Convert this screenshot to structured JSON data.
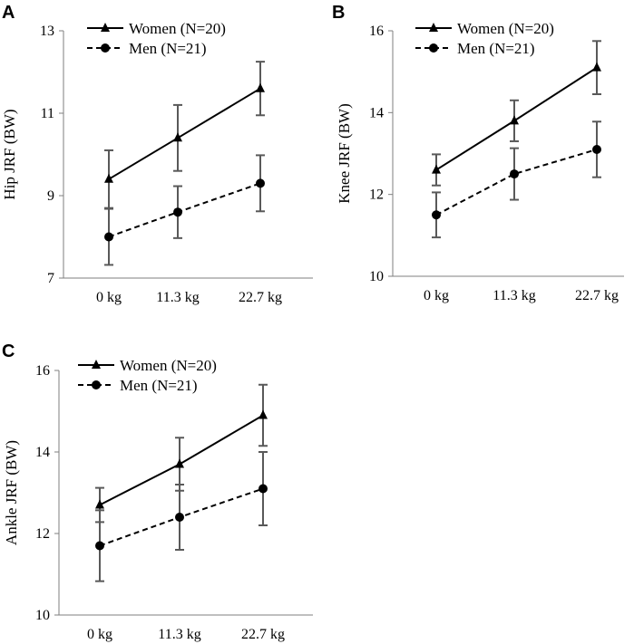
{
  "chart_data": [
    {
      "type": "line",
      "panel_label": "A",
      "title": "",
      "xlabel": "",
      "ylabel": "Hip JRF (BW)",
      "categories": [
        "0 kg",
        "11.3 kg",
        "22.7 kg"
      ],
      "ylim": [
        7,
        13
      ],
      "yticks": [
        7,
        9,
        11,
        13
      ],
      "grid": false,
      "legend_position": "top-left",
      "series": [
        {
          "name": "Women (N=20)",
          "style": "solid",
          "marker": "triangle",
          "values": [
            9.4,
            10.4,
            11.6
          ],
          "errors": [
            0.7,
            0.8,
            0.65
          ]
        },
        {
          "name": "Men (N=21)",
          "style": "dashed",
          "marker": "circle",
          "values": [
            8.0,
            8.6,
            9.3
          ],
          "errors": [
            0.68,
            0.63,
            0.68
          ]
        }
      ]
    },
    {
      "type": "line",
      "panel_label": "B",
      "title": "",
      "xlabel": "",
      "ylabel": "Knee JRF (BW)",
      "categories": [
        "0 kg",
        "11.3 kg",
        "22.7 kg"
      ],
      "ylim": [
        10,
        16
      ],
      "yticks": [
        10,
        12,
        14,
        16
      ],
      "grid": false,
      "legend_position": "top-left",
      "series": [
        {
          "name": "Women (N=20)",
          "style": "solid",
          "marker": "triangle",
          "values": [
            12.6,
            13.8,
            15.1
          ],
          "errors": [
            0.38,
            0.5,
            0.65
          ]
        },
        {
          "name": "Men (N=21)",
          "style": "dashed",
          "marker": "circle",
          "values": [
            11.5,
            12.5,
            13.1
          ],
          "errors": [
            0.55,
            0.63,
            0.68
          ]
        }
      ]
    },
    {
      "type": "line",
      "panel_label": "C",
      "title": "",
      "xlabel": "",
      "ylabel": "Ankle JRF (BW)",
      "categories": [
        "0 kg",
        "11.3 kg",
        "22.7 kg"
      ],
      "ylim": [
        10,
        16
      ],
      "yticks": [
        10,
        12,
        14,
        16
      ],
      "grid": false,
      "legend_position": "top-left",
      "series": [
        {
          "name": "Women (N=20)",
          "style": "solid",
          "marker": "triangle",
          "values": [
            12.7,
            13.7,
            14.9
          ],
          "errors": [
            0.42,
            0.65,
            0.75
          ]
        },
        {
          "name": "Men (N=21)",
          "style": "dashed",
          "marker": "circle",
          "values": [
            11.7,
            12.4,
            13.1
          ],
          "errors": [
            0.87,
            0.8,
            0.9
          ]
        }
      ]
    }
  ],
  "colors": {
    "line": "#000000",
    "errorbar": "#595959",
    "axis": "#7f7f7f"
  }
}
